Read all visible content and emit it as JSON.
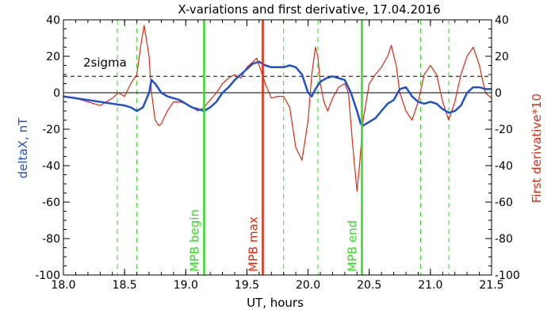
{
  "chart_data": {
    "type": "line",
    "title": "X-variations and first derivative, 17.04.2016",
    "xlabel": "UT, hours",
    "ylabel_left": "deltaX, nT",
    "ylabel_right": "First derivative*10",
    "xlim": [
      18.0,
      21.5
    ],
    "ylim": [
      -100,
      40
    ],
    "x_ticks": [
      "18.0",
      "18.5",
      "19.0",
      "19.5",
      "20.0",
      "20.5",
      "21.0",
      "21.5"
    ],
    "y_ticks_left": [
      "40",
      "20",
      "0",
      "-20",
      "-40",
      "-60",
      "-80",
      "-100"
    ],
    "y_ticks_right": [
      "40",
      "20",
      "0",
      "-20",
      "-40",
      "-60",
      "-80",
      "-100"
    ],
    "colors": {
      "title": "#000000",
      "deltaX": "#1f4fd6",
      "derivative": "#e02a10",
      "mpb_lines": "#33dd22",
      "mpb_max": "#e02a10",
      "axis": "#000000"
    },
    "sigma_label": "2sigma",
    "sigma_level": 9,
    "zero_level": 0,
    "series": [
      {
        "id": "deltaX",
        "x": [
          18.0,
          18.1,
          18.2,
          18.3,
          18.4,
          18.5,
          18.55,
          18.6,
          18.65,
          18.7,
          18.72,
          18.75,
          18.8,
          18.85,
          18.9,
          18.95,
          19.0,
          19.05,
          19.1,
          19.15,
          19.2,
          19.25,
          19.3,
          19.35,
          19.4,
          19.45,
          19.5,
          19.55,
          19.6,
          19.65,
          19.7,
          19.75,
          19.8,
          19.85,
          19.9,
          19.95,
          20.0,
          20.03,
          20.06,
          20.1,
          20.15,
          20.2,
          20.25,
          20.3,
          20.35,
          20.4,
          20.43,
          20.45,
          20.5,
          20.55,
          20.6,
          20.65,
          20.7,
          20.75,
          20.8,
          20.85,
          20.9,
          20.95,
          21.0,
          21.05,
          21.1,
          21.15,
          21.2,
          21.25,
          21.3,
          21.35,
          21.4,
          21.45,
          21.5
        ],
        "y": [
          -2,
          -3,
          -4,
          -5,
          -6,
          -7,
          -8,
          -10,
          -8,
          0,
          7,
          5,
          0,
          -2,
          -3,
          -4,
          -6,
          -8,
          -9,
          -10,
          -8,
          -5,
          0,
          3,
          7,
          10,
          13,
          16,
          17,
          15,
          14,
          14,
          14,
          15,
          14,
          10,
          0,
          -2,
          2,
          6,
          8,
          9,
          8,
          7,
          0,
          -10,
          -17,
          -18,
          -16,
          -14,
          -10,
          -6,
          -4,
          2,
          3,
          -2,
          -5,
          -6,
          -5,
          -6,
          -9,
          -11,
          -10,
          -7,
          0,
          3,
          3,
          2,
          2
        ]
      },
      {
        "id": "derivative",
        "x": [
          18.0,
          18.1,
          18.2,
          18.3,
          18.4,
          18.45,
          18.5,
          18.55,
          18.6,
          18.63,
          18.66,
          18.7,
          18.72,
          18.75,
          18.78,
          18.8,
          18.85,
          18.9,
          18.95,
          19.0,
          19.05,
          19.1,
          19.15,
          19.2,
          19.25,
          19.3,
          19.35,
          19.4,
          19.45,
          19.5,
          19.55,
          19.58,
          19.6,
          19.65,
          19.7,
          19.75,
          19.8,
          19.85,
          19.9,
          19.95,
          20.0,
          20.03,
          20.06,
          20.08,
          20.1,
          20.13,
          20.16,
          20.2,
          20.25,
          20.3,
          20.33,
          20.36,
          20.38,
          20.4,
          20.42,
          20.45,
          20.5,
          20.55,
          20.6,
          20.65,
          20.68,
          20.72,
          20.75,
          20.8,
          20.85,
          20.9,
          20.95,
          21.0,
          21.05,
          21.1,
          21.15,
          21.2,
          21.25,
          21.3,
          21.35,
          21.4,
          21.45,
          21.5
        ],
        "y": [
          -2,
          -3,
          -5,
          -7,
          -3,
          0,
          -2,
          5,
          10,
          25,
          37,
          20,
          0,
          -15,
          -18,
          -17,
          -10,
          -5,
          -5,
          -6,
          -8,
          -10,
          -8,
          -4,
          0,
          5,
          8,
          10,
          8,
          14,
          17,
          19,
          15,
          5,
          -3,
          -2,
          -2,
          -8,
          -30,
          -37,
          -15,
          10,
          25,
          20,
          5,
          -5,
          -10,
          -3,
          3,
          5,
          0,
          -25,
          -40,
          -54,
          -40,
          -15,
          5,
          10,
          14,
          20,
          26,
          15,
          0,
          -10,
          -15,
          -5,
          10,
          15,
          10,
          -5,
          -15,
          -5,
          10,
          20,
          25,
          15,
          0,
          -3
        ]
      }
    ],
    "markers": {
      "dashed_x": [
        18.44,
        18.6,
        19.8,
        20.08,
        20.92,
        21.15
      ],
      "mpb_begin": {
        "x": 19.15,
        "label": "MPB begin"
      },
      "mpb_max": {
        "x": 19.63,
        "label": "MPB max"
      },
      "mpb_end": {
        "x": 20.44,
        "label": "MPB end"
      }
    }
  }
}
